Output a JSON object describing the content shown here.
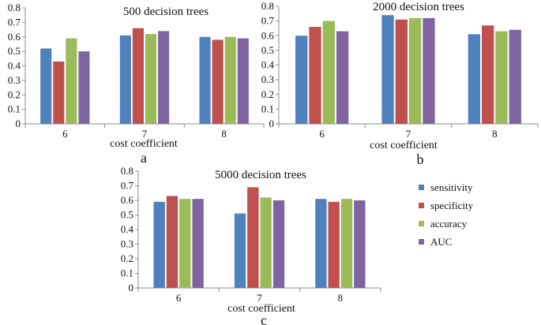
{
  "legend": {
    "series": [
      {
        "name": "sensitivity",
        "color": "#4f81bd"
      },
      {
        "name": "specificity",
        "color": "#c0504d"
      },
      {
        "name": "accuracy",
        "color": "#9bbb59"
      },
      {
        "name": "AUC",
        "color": "#8064a2"
      }
    ]
  },
  "chart_data": [
    {
      "type": "bar",
      "panel": "a",
      "title": "500  decision trees",
      "xlabel": "cost coefficient",
      "ylabel": "",
      "ylim": [
        0,
        0.8
      ],
      "yticks": [
        "0",
        "0.1",
        "0.2",
        "0.3",
        "0.4",
        "0.5",
        "0.6",
        "0.7",
        "0.8"
      ],
      "categories": [
        "6",
        "7",
        "8"
      ],
      "series": [
        {
          "name": "sensitivity",
          "values": [
            0.52,
            0.61,
            0.6
          ]
        },
        {
          "name": "specificity",
          "values": [
            0.43,
            0.66,
            0.58
          ]
        },
        {
          "name": "accuracy",
          "values": [
            0.59,
            0.62,
            0.6
          ]
        },
        {
          "name": "AUC",
          "values": [
            0.5,
            0.64,
            0.59
          ]
        }
      ]
    },
    {
      "type": "bar",
      "panel": "b",
      "title": "2000 decision trees",
      "xlabel": "cost coefficient",
      "ylabel": "",
      "ylim": [
        0,
        0.8
      ],
      "yticks": [
        "0",
        "0.1",
        "0.2",
        "0.3",
        "0.4",
        "0.5",
        "0.6",
        "0.7",
        "0.8"
      ],
      "categories": [
        "6",
        "7",
        "8"
      ],
      "series": [
        {
          "name": "sensitivity",
          "values": [
            0.6,
            0.74,
            0.61
          ]
        },
        {
          "name": "specificity",
          "values": [
            0.66,
            0.71,
            0.67
          ]
        },
        {
          "name": "accuracy",
          "values": [
            0.7,
            0.72,
            0.63
          ]
        },
        {
          "name": "AUC",
          "values": [
            0.63,
            0.72,
            0.64
          ]
        }
      ]
    },
    {
      "type": "bar",
      "panel": "c",
      "title": "5000 decision trees",
      "xlabel": "cost coefficient",
      "ylabel": "",
      "ylim": [
        0,
        0.8
      ],
      "yticks": [
        "0",
        "0.1",
        "0.2",
        "0.3",
        "0.4",
        "0.5",
        "0.6",
        "0.7",
        "0.8"
      ],
      "categories": [
        "6",
        "7",
        "8"
      ],
      "series": [
        {
          "name": "sensitivity",
          "values": [
            0.59,
            0.51,
            0.61
          ]
        },
        {
          "name": "specificity",
          "values": [
            0.63,
            0.69,
            0.59
          ]
        },
        {
          "name": "accuracy",
          "values": [
            0.61,
            0.62,
            0.61
          ]
        },
        {
          "name": "AUC",
          "values": [
            0.61,
            0.6,
            0.6
          ]
        }
      ]
    }
  ]
}
